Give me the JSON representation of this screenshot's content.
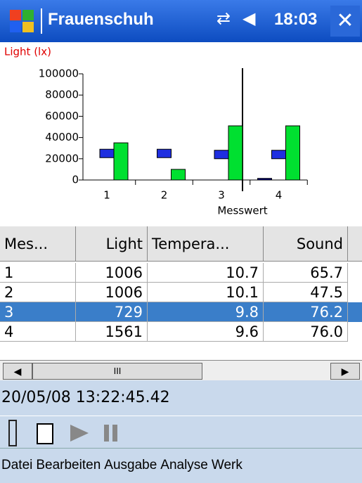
{
  "title_bar": {
    "title": "Frauenschuh",
    "time": "18:03"
  },
  "chart_data": {
    "type": "bar",
    "y_label": "Light (lx)",
    "x_label": "Messwert",
    "categories": [
      "1",
      "2",
      "3",
      "4"
    ],
    "series": [
      {
        "color": "#000080",
        "kind": "bar",
        "values": [
          null,
          null,
          null,
          1500
        ]
      },
      {
        "color": "#1f2fe0",
        "kind": "marker",
        "values": [
          25000,
          25000,
          24000,
          24000
        ]
      },
      {
        "color": "#00e030",
        "kind": "bar",
        "values": [
          35000,
          10000,
          51000,
          51000
        ]
      }
    ],
    "ylim": [
      0,
      100000
    ],
    "yticks": [
      0,
      20000,
      40000,
      60000,
      80000,
      100000
    ]
  },
  "table": {
    "columns": [
      "Mes...",
      "Light",
      "Tempera...",
      "Sound"
    ],
    "rows": [
      [
        "1",
        "1006",
        "10.7",
        "65.7"
      ],
      [
        "2",
        "1006",
        "10.1",
        "47.5"
      ],
      [
        "3",
        "729",
        "9.8",
        "76.2"
      ],
      [
        "4",
        "1561",
        "9.6",
        "76.0"
      ]
    ],
    "selected_row": 2
  },
  "status": "20/05/08 13:22:45.42",
  "menu": [
    "Datei",
    "Bearbeiten",
    "Ausgabe",
    "Analyse",
    "Werk"
  ]
}
